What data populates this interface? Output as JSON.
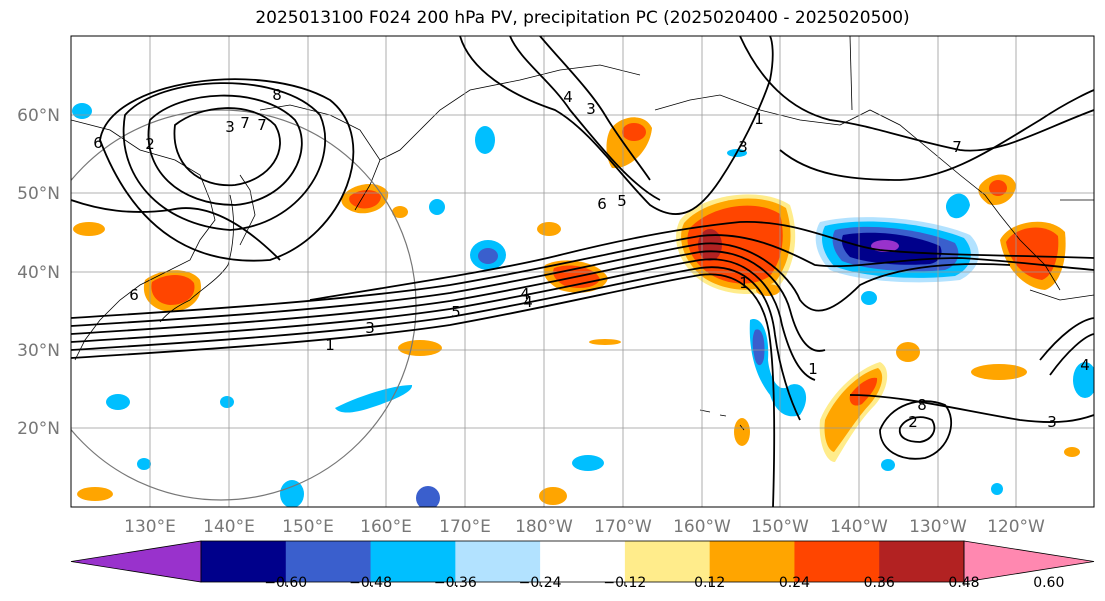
{
  "title": "2025013100 F024 200 hPa PV, precipitation PC (2025020400 - 2025020500)",
  "lon_labels": [
    "130°E",
    "140°E",
    "150°E",
    "160°E",
    "170°E",
    "180°W",
    "170°W",
    "160°W",
    "150°W",
    "140°W",
    "130°W",
    "120°W"
  ],
  "lat_labels": [
    "60°N",
    "50°N",
    "40°N",
    "30°N",
    "20°N"
  ],
  "colorbar": {
    "colors": [
      "#9932cc",
      "#00008b",
      "#3a5fcd",
      "#00bfff",
      "#b2e2ff",
      "#ffffff",
      "#ffec8b",
      "#ffa500",
      "#ff4500",
      "#b22222",
      "#ff88b0"
    ],
    "tick_labels": [
      "−0.60",
      "−0.48",
      "−0.36",
      "−0.24",
      "−0.12",
      "0.12",
      "0.24",
      "0.36",
      "0.48",
      "0.60"
    ]
  },
  "contour_labels": [
    "8",
    "6",
    "3",
    "7",
    "4",
    "3",
    "2",
    "7",
    "6",
    "5",
    "4",
    "3",
    "1",
    "6",
    "5",
    "4",
    "3",
    "1",
    "7",
    "1",
    "8",
    "2",
    "3",
    "1",
    "4"
  ],
  "colors": {
    "positive": "#ff4500",
    "positive_light": "#ffa500",
    "positive_pale": "#ffec8b",
    "negative": "#3a5fcd",
    "negative_light": "#00bfff",
    "negative_dark": "#00008b",
    "grid": "#999999"
  }
}
